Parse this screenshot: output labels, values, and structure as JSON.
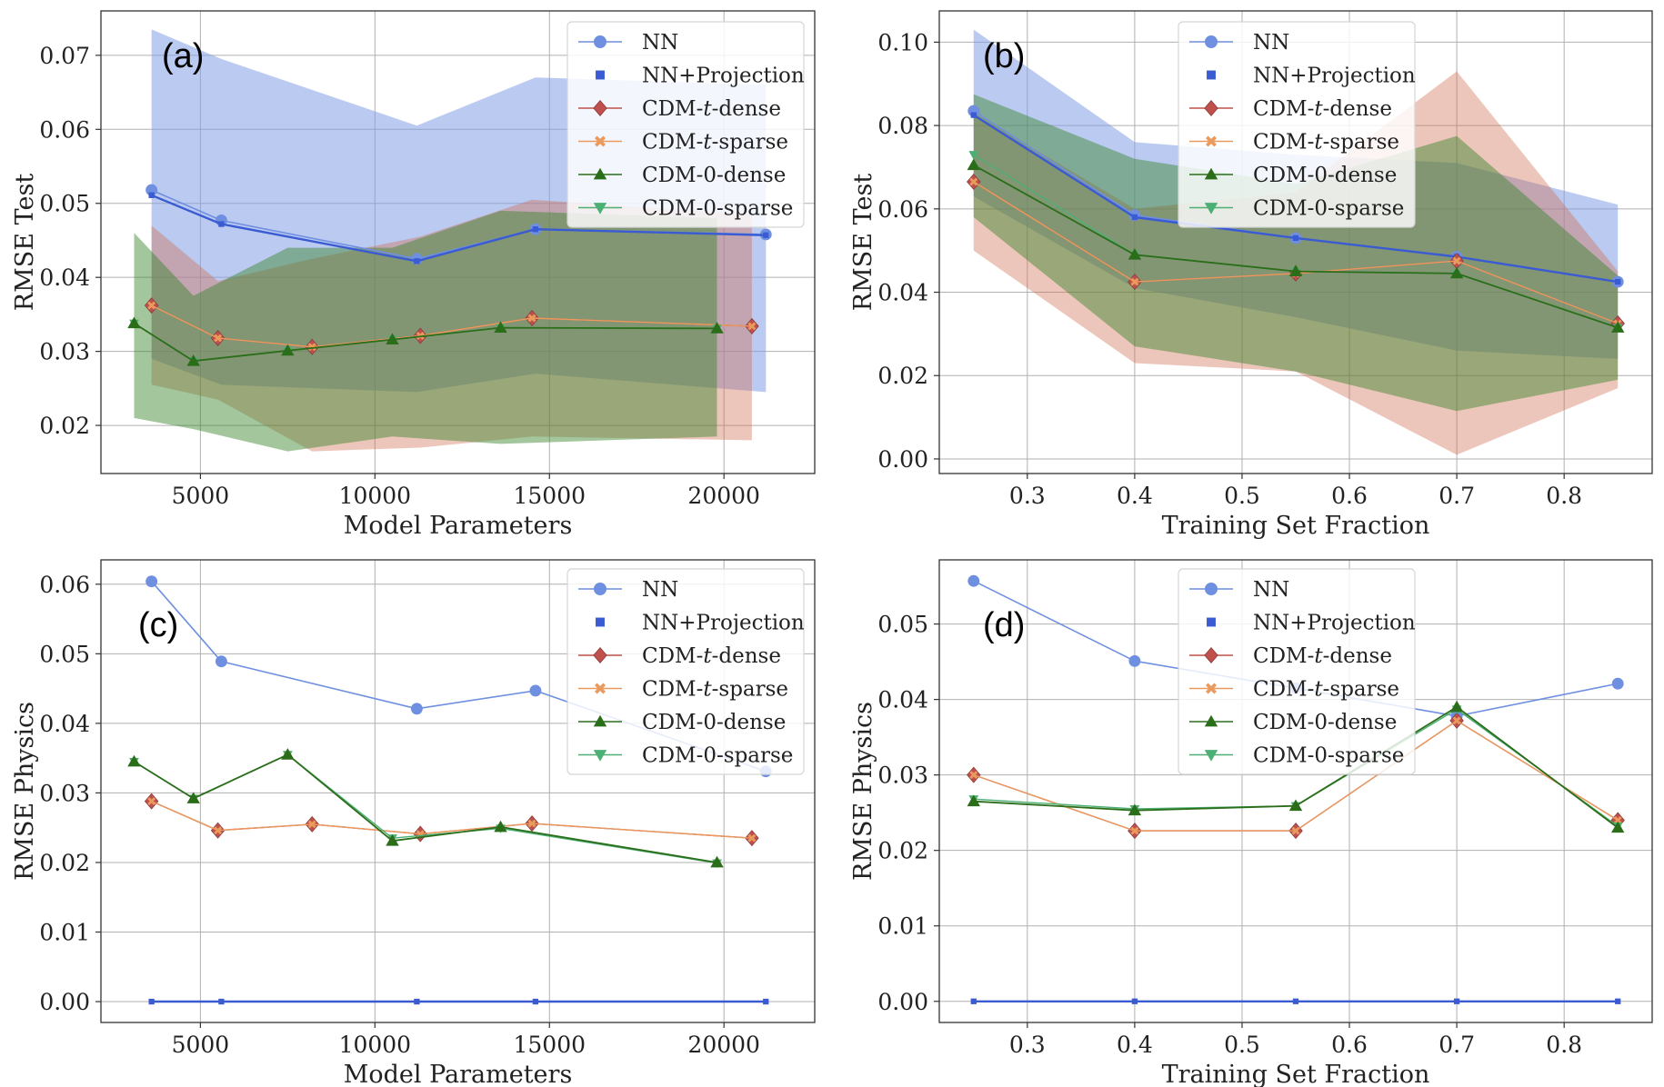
{
  "colors": {
    "NN": "#6f8fe0",
    "NN+Projection": "#3a5bd1",
    "CDM-t-dense": "#c0504d",
    "CDM-t-sparse": "#eb9a5e",
    "CDM-0-dense": "#2b6e1a",
    "CDM-0-sparse": "#4caf74"
  },
  "legend": [
    {
      "label": "NN",
      "marker": "circle",
      "color_key": "NN"
    },
    {
      "label": "NN+Projection",
      "marker": "square",
      "color_key": "NN+Projection"
    },
    {
      "label_parts": [
        "CDM-",
        "t",
        "-dense"
      ],
      "marker": "diamond",
      "color_key": "CDM-t-dense"
    },
    {
      "label_parts": [
        "CDM-",
        "t",
        "-sparse"
      ],
      "marker": "cross",
      "color_key": "CDM-t-sparse"
    },
    {
      "label": "CDM-0-dense",
      "marker": "triangle-up",
      "color_key": "CDM-0-dense"
    },
    {
      "label": "CDM-0-sparse",
      "marker": "triangle-down",
      "color_key": "CDM-0-sparse"
    }
  ],
  "chart_data": [
    {
      "type": "line",
      "panel_label": "(a)",
      "xlabel": "Model Parameters",
      "ylabel": "RMSE Test",
      "xlim": [
        2150,
        22600
      ],
      "ylim": [
        0.0135,
        0.076
      ],
      "xticks": [
        5000,
        10000,
        15000,
        20000
      ],
      "xtick_labels": [
        "5000",
        "10000",
        "15000",
        "20000"
      ],
      "yticks": [
        0.02,
        0.03,
        0.04,
        0.05,
        0.06,
        0.07
      ],
      "ytick_labels": [
        "0.02",
        "0.03",
        "0.04",
        "0.05",
        "0.06",
        "0.07"
      ],
      "legend_position": "top-right",
      "bands": [
        {
          "series": "CDM-t-dense",
          "x": [
            3600,
            5500,
            8200,
            11300,
            14500,
            20800
          ],
          "lower": [
            0.0255,
            0.0235,
            0.0165,
            0.017,
            0.0185,
            0.018
          ],
          "upper": [
            0.047,
            0.0395,
            0.0425,
            0.0455,
            0.0505,
            0.0485
          ]
        },
        {
          "series": "CDM-t-sparse",
          "x": [
            3600,
            5500,
            8200,
            11300,
            14500,
            20800
          ],
          "lower": [
            0.0255,
            0.0235,
            0.0165,
            0.017,
            0.0185,
            0.018
          ],
          "upper": [
            0.047,
            0.0395,
            0.0425,
            0.0455,
            0.0505,
            0.0485
          ]
        },
        {
          "series": "CDM-0-dense",
          "x": [
            3100,
            4800,
            7500,
            10500,
            13600,
            19800
          ],
          "lower": [
            0.021,
            0.0195,
            0.0165,
            0.0185,
            0.0175,
            0.0185
          ],
          "upper": [
            0.046,
            0.0375,
            0.044,
            0.044,
            0.049,
            0.048
          ]
        },
        {
          "series": "CDM-0-sparse",
          "x": [
            3100,
            4800,
            7500,
            10500,
            13600,
            19800
          ],
          "lower": [
            0.021,
            0.0195,
            0.0165,
            0.0185,
            0.0175,
            0.0185
          ],
          "upper": [
            0.046,
            0.0375,
            0.044,
            0.044,
            0.049,
            0.048
          ]
        },
        {
          "series": "NN",
          "x": [
            3600,
            5600,
            11200,
            14600,
            21200
          ],
          "lower": [
            0.029,
            0.0255,
            0.0245,
            0.027,
            0.0245
          ],
          "upper": [
            0.0735,
            0.0695,
            0.0605,
            0.067,
            0.066
          ]
        },
        {
          "series": "NN+Projection",
          "x": [
            3600,
            5600,
            11200,
            14600,
            21200
          ],
          "lower": [
            0.029,
            0.0255,
            0.0245,
            0.027,
            0.0245
          ],
          "upper": [
            0.0735,
            0.0695,
            0.0605,
            0.067,
            0.066
          ]
        }
      ],
      "series": [
        {
          "name": "NN",
          "x": [
            3600,
            5600,
            11200,
            14600,
            21200
          ],
          "y": [
            0.0518,
            0.0477,
            0.0425,
            0.0465,
            0.0458
          ]
        },
        {
          "name": "NN+Projection",
          "x": [
            3600,
            5600,
            11200,
            14600,
            21200
          ],
          "y": [
            0.0511,
            0.0472,
            0.0422,
            0.0465,
            0.0457
          ]
        },
        {
          "name": "CDM-t-dense",
          "x": [
            3600,
            5500,
            8200,
            11300,
            14500,
            20800
          ],
          "y": [
            0.0362,
            0.0318,
            0.0306,
            0.0321,
            0.0345,
            0.0334
          ]
        },
        {
          "name": "CDM-t-sparse",
          "x": [
            3600,
            5500,
            8200,
            11300,
            14500,
            20800
          ],
          "y": [
            0.0362,
            0.0318,
            0.0306,
            0.0321,
            0.0345,
            0.0334
          ]
        },
        {
          "name": "CDM-0-dense",
          "x": [
            3100,
            4800,
            7500,
            10500,
            13600,
            19800
          ],
          "y": [
            0.0338,
            0.0287,
            0.0301,
            0.0316,
            0.0332,
            0.0331
          ]
        },
        {
          "name": "CDM-0-sparse",
          "x": [
            3100,
            4800,
            7500,
            10500,
            13600,
            19800
          ],
          "y": [
            0.0338,
            0.0287,
            0.0301,
            0.0316,
            0.0332,
            0.0331
          ]
        }
      ]
    },
    {
      "type": "line",
      "panel_label": "(b)",
      "xlabel": "Training Set Fraction",
      "ylabel": "RMSE Test",
      "xlim": [
        0.218,
        0.882
      ],
      "ylim": [
        -0.0035,
        0.1075
      ],
      "xticks": [
        0.3,
        0.4,
        0.5,
        0.6,
        0.7,
        0.8
      ],
      "xtick_labels": [
        "0.3",
        "0.4",
        "0.5",
        "0.6",
        "0.7",
        "0.8"
      ],
      "yticks": [
        0.0,
        0.02,
        0.04,
        0.06,
        0.08,
        0.1
      ],
      "ytick_labels": [
        "0.00",
        "0.02",
        "0.04",
        "0.06",
        "0.08",
        "0.10"
      ],
      "legend_position": "top-center",
      "bands": [
        {
          "series": "CDM-t-dense",
          "x": [
            0.25,
            0.4,
            0.55,
            0.7,
            0.85
          ],
          "lower": [
            0.05,
            0.023,
            0.021,
            0.001,
            0.017
          ],
          "upper": [
            0.083,
            0.06,
            0.064,
            0.093,
            0.045
          ]
        },
        {
          "series": "CDM-t-sparse",
          "x": [
            0.25,
            0.4,
            0.55,
            0.7,
            0.85
          ],
          "lower": [
            0.05,
            0.023,
            0.021,
            0.001,
            0.017
          ],
          "upper": [
            0.083,
            0.06,
            0.064,
            0.093,
            0.045
          ]
        },
        {
          "series": "NN",
          "x": [
            0.25,
            0.4,
            0.55,
            0.7,
            0.85
          ],
          "lower": [
            0.063,
            0.041,
            0.034,
            0.026,
            0.024
          ],
          "upper": [
            0.103,
            0.076,
            0.073,
            0.071,
            0.061
          ]
        },
        {
          "series": "NN+Projection",
          "x": [
            0.25,
            0.4,
            0.55,
            0.7,
            0.85
          ],
          "lower": [
            0.063,
            0.041,
            0.034,
            0.026,
            0.024
          ],
          "upper": [
            0.103,
            0.076,
            0.073,
            0.071,
            0.061
          ]
        },
        {
          "series": "CDM-0-dense",
          "x": [
            0.25,
            0.4,
            0.55,
            0.7,
            0.85
          ],
          "lower": [
            0.058,
            0.027,
            0.021,
            0.0115,
            0.019
          ],
          "upper": [
            0.0875,
            0.072,
            0.066,
            0.0775,
            0.044
          ]
        },
        {
          "series": "CDM-0-sparse",
          "x": [
            0.25,
            0.4,
            0.55,
            0.7,
            0.85
          ],
          "lower": [
            0.058,
            0.027,
            0.021,
            0.0115,
            0.019
          ],
          "upper": [
            0.0875,
            0.072,
            0.066,
            0.0775,
            0.044
          ]
        }
      ],
      "series": [
        {
          "name": "NN",
          "x": [
            0.25,
            0.4,
            0.55,
            0.7,
            0.85
          ],
          "y": [
            0.0835,
            0.0585,
            0.053,
            0.0485,
            0.0425
          ]
        },
        {
          "name": "NN+Projection",
          "x": [
            0.25,
            0.4,
            0.55,
            0.7,
            0.85
          ],
          "y": [
            0.0825,
            0.058,
            0.053,
            0.0485,
            0.0425
          ]
        },
        {
          "name": "CDM-t-dense",
          "x": [
            0.25,
            0.4,
            0.55,
            0.7,
            0.85
          ],
          "y": [
            0.0665,
            0.0425,
            0.0445,
            0.0475,
            0.0325
          ]
        },
        {
          "name": "CDM-t-sparse",
          "x": [
            0.25,
            0.4,
            0.55,
            0.7,
            0.85
          ],
          "y": [
            0.0665,
            0.0425,
            0.0445,
            0.0475,
            0.0325
          ]
        },
        {
          "name": "CDM-0-dense",
          "x": [
            0.25,
            0.4,
            0.55,
            0.7,
            0.85
          ],
          "y": [
            0.0705,
            0.049,
            0.045,
            0.0445,
            0.0315
          ]
        },
        {
          "name": "CDM-0-sparse",
          "x": [
            0.25,
            0.4,
            0.55,
            0.7,
            0.85
          ],
          "y": [
            0.073,
            0.049,
            0.045,
            0.0445,
            0.0315
          ]
        }
      ]
    },
    {
      "type": "line",
      "panel_label": "(c)",
      "xlabel": "Model Parameters",
      "ylabel": "RMSE Physics",
      "xlim": [
        2150,
        22600
      ],
      "ylim": [
        -0.003,
        0.0635
      ],
      "xticks": [
        5000,
        10000,
        15000,
        20000
      ],
      "xtick_labels": [
        "5000",
        "10000",
        "15000",
        "20000"
      ],
      "yticks": [
        0.0,
        0.01,
        0.02,
        0.03,
        0.04,
        0.05,
        0.06
      ],
      "ytick_labels": [
        "0.00",
        "0.01",
        "0.02",
        "0.03",
        "0.04",
        "0.05",
        "0.06"
      ],
      "legend_position": "top-right",
      "bands": [],
      "series": [
        {
          "name": "NN",
          "x": [
            3600,
            5600,
            11200,
            14600,
            21200
          ],
          "y": [
            0.0604,
            0.0489,
            0.0421,
            0.0447,
            0.0331
          ]
        },
        {
          "name": "NN+Projection",
          "x": [
            3600,
            5600,
            11200,
            14600,
            21200
          ],
          "y": [
            0.0,
            0.0,
            0.0,
            0.0,
            0.0
          ]
        },
        {
          "name": "CDM-t-dense",
          "x": [
            3600,
            5500,
            8200,
            11300,
            14500,
            20800
          ],
          "y": [
            0.0288,
            0.0246,
            0.0255,
            0.0241,
            0.0256,
            0.0235
          ]
        },
        {
          "name": "CDM-t-sparse",
          "x": [
            3600,
            5500,
            8200,
            11300,
            14500,
            20800
          ],
          "y": [
            0.0288,
            0.0246,
            0.0255,
            0.0241,
            0.0256,
            0.0235
          ]
        },
        {
          "name": "CDM-0-dense",
          "x": [
            3100,
            4800,
            7500,
            10500,
            13600,
            19800
          ],
          "y": [
            0.0345,
            0.0292,
            0.0355,
            0.0231,
            0.0251,
            0.02
          ]
        },
        {
          "name": "CDM-0-sparse",
          "x": [
            3100,
            4800,
            7500,
            10500,
            13600,
            19800
          ],
          "y": [
            0.0345,
            0.0292,
            0.0355,
            0.0235,
            0.0249,
            0.0199
          ]
        }
      ]
    },
    {
      "type": "line",
      "panel_label": "(d)",
      "xlabel": "Training Set Fraction",
      "ylabel": "RMSE Physics",
      "xlim": [
        0.218,
        0.882
      ],
      "ylim": [
        -0.0028,
        0.0585
      ],
      "xticks": [
        0.3,
        0.4,
        0.5,
        0.6,
        0.7,
        0.8
      ],
      "xtick_labels": [
        "0.3",
        "0.4",
        "0.5",
        "0.6",
        "0.7",
        "0.8"
      ],
      "yticks": [
        0.0,
        0.01,
        0.02,
        0.03,
        0.04,
        0.05
      ],
      "ytick_labels": [
        "0.00",
        "0.01",
        "0.02",
        "0.03",
        "0.04",
        "0.05"
      ],
      "legend_position": "top-center",
      "bands": [],
      "series": [
        {
          "name": "NN",
          "x": [
            0.25,
            0.4,
            0.55,
            0.7,
            0.85
          ],
          "y": [
            0.0557,
            0.0451,
            0.0415,
            0.0378,
            0.0421
          ]
        },
        {
          "name": "NN+Projection",
          "x": [
            0.25,
            0.4,
            0.55,
            0.7,
            0.85
          ],
          "y": [
            0.0,
            0.0,
            0.0,
            0.0,
            0.0
          ]
        },
        {
          "name": "CDM-t-dense",
          "x": [
            0.25,
            0.4,
            0.55,
            0.7,
            0.85
          ],
          "y": [
            0.03,
            0.0226,
            0.0226,
            0.0372,
            0.024
          ]
        },
        {
          "name": "CDM-t-sparse",
          "x": [
            0.25,
            0.4,
            0.55,
            0.7,
            0.85
          ],
          "y": [
            0.03,
            0.0226,
            0.0226,
            0.0372,
            0.024
          ]
        },
        {
          "name": "CDM-0-dense",
          "x": [
            0.25,
            0.4,
            0.55,
            0.7,
            0.85
          ],
          "y": [
            0.0265,
            0.0253,
            0.0259,
            0.039,
            0.023
          ]
        },
        {
          "name": "CDM-0-sparse",
          "x": [
            0.25,
            0.4,
            0.55,
            0.7,
            0.85
          ],
          "y": [
            0.0268,
            0.0255,
            0.0259,
            0.0387,
            0.0232
          ]
        }
      ]
    }
  ]
}
